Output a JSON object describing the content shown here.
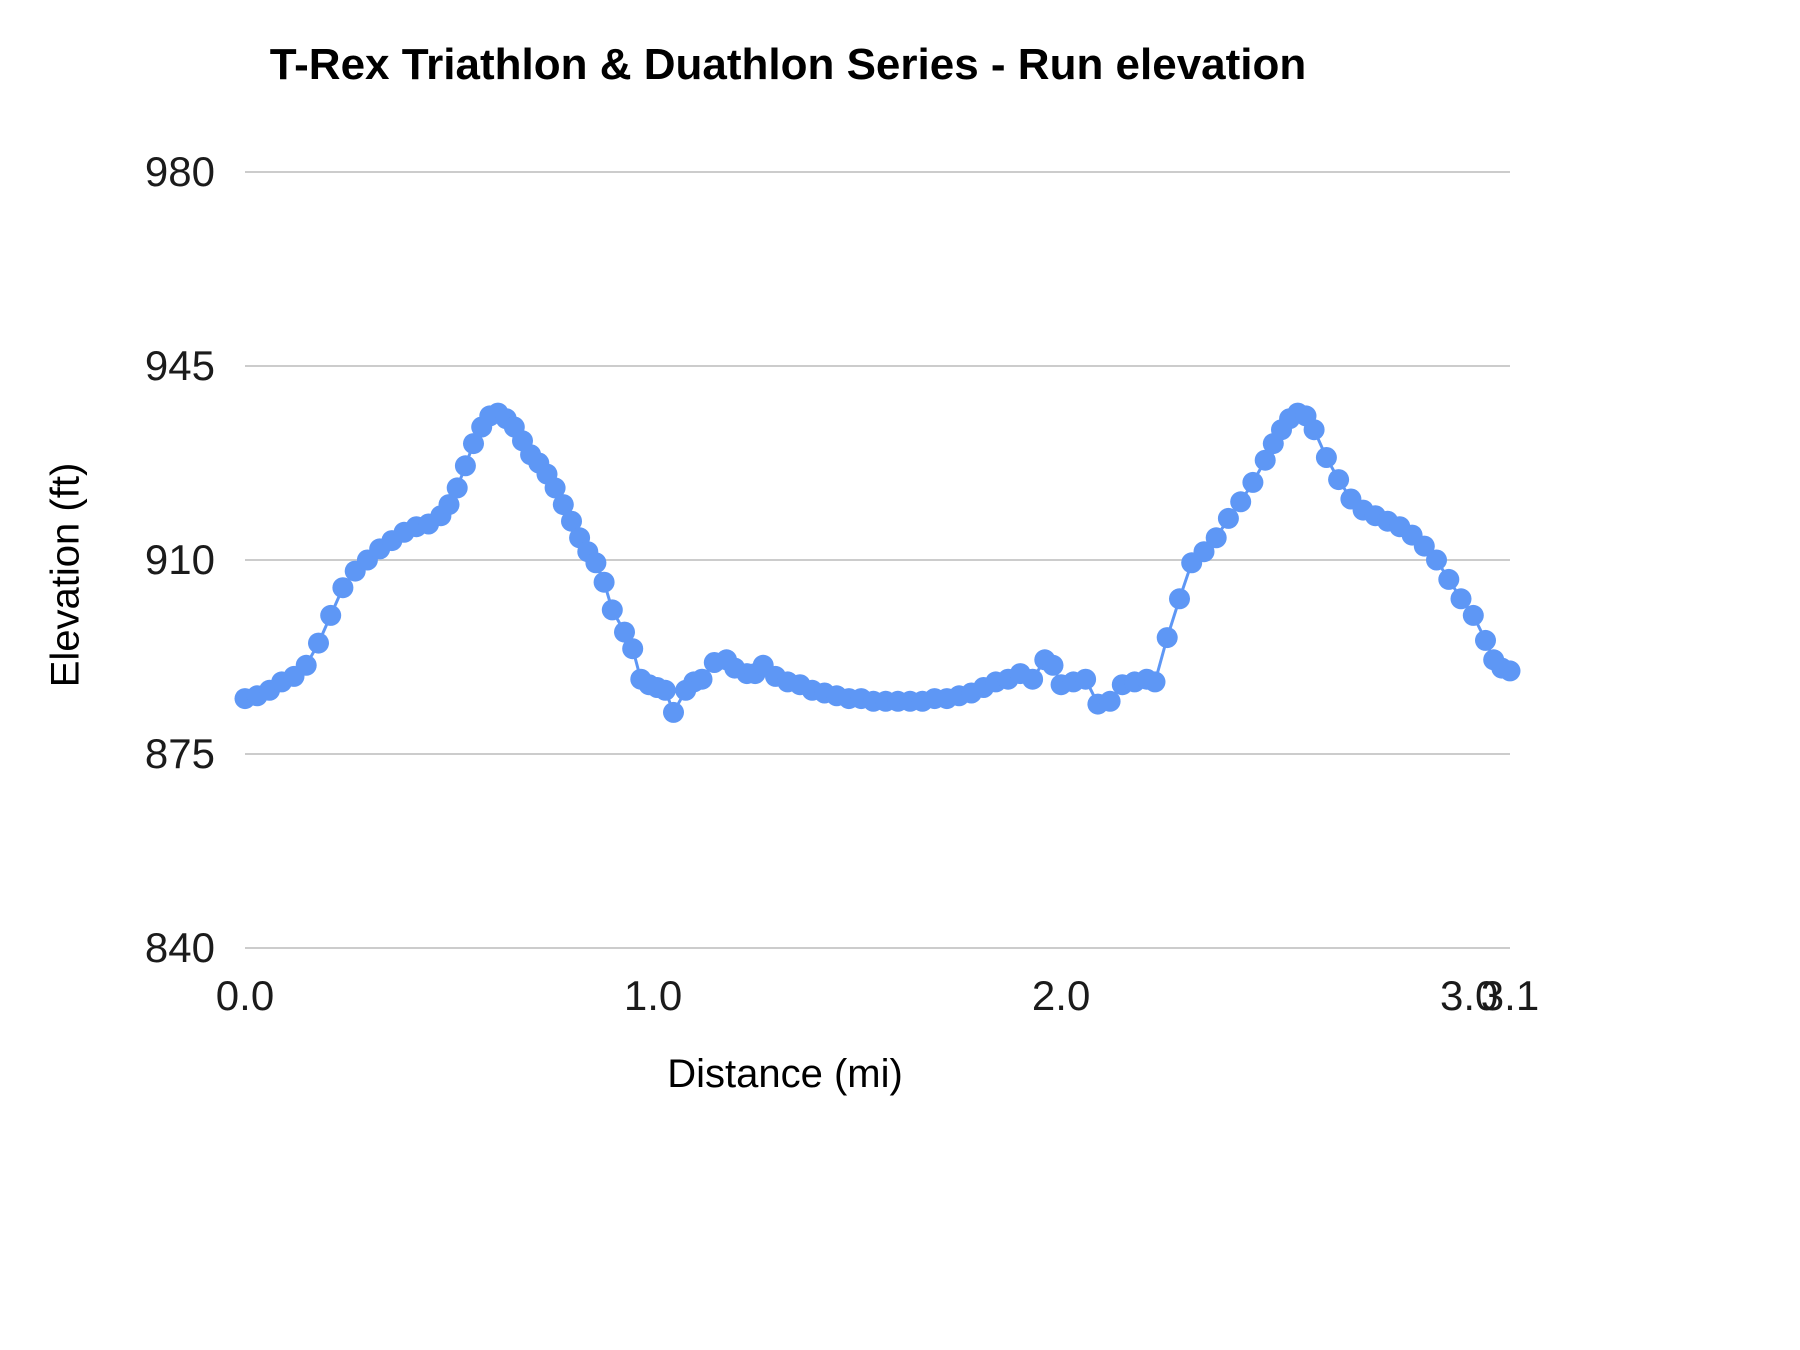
{
  "chart_data": {
    "type": "line",
    "title": "T-Rex Triathlon & Duathlon Series - Run elevation",
    "xlabel": "Distance (mi)",
    "ylabel": "Elevation (ft)",
    "xlim": [
      0,
      3.1
    ],
    "ylim": [
      840,
      980
    ],
    "grid": "horizontal",
    "legend": "none",
    "series_color": "#5e97f5",
    "gridline_color": "#cccccc",
    "tick_color": "#1b1b1b",
    "yticks": [
      840,
      875,
      910,
      945,
      980
    ],
    "xticks": [
      {
        "label": "0.0",
        "value": 0.0
      },
      {
        "label": "1.0",
        "value": 1.0
      },
      {
        "label": "2.0",
        "value": 2.0
      },
      {
        "label": "3.0",
        "value": 3.0
      },
      {
        "label": "3.1",
        "value": 3.1
      }
    ],
    "series": [
      {
        "name": "Run elevation",
        "x": [
          0.0,
          0.03,
          0.06,
          0.09,
          0.12,
          0.15,
          0.18,
          0.21,
          0.24,
          0.27,
          0.3,
          0.33,
          0.36,
          0.39,
          0.42,
          0.45,
          0.48,
          0.5,
          0.52,
          0.54,
          0.56,
          0.58,
          0.6,
          0.62,
          0.64,
          0.66,
          0.68,
          0.7,
          0.72,
          0.74,
          0.76,
          0.78,
          0.8,
          0.82,
          0.84,
          0.86,
          0.88,
          0.9,
          0.93,
          0.95,
          0.97,
          0.99,
          1.01,
          1.03,
          1.05,
          1.08,
          1.1,
          1.12,
          1.15,
          1.18,
          1.2,
          1.23,
          1.25,
          1.27,
          1.3,
          1.33,
          1.36,
          1.39,
          1.42,
          1.45,
          1.48,
          1.51,
          1.54,
          1.57,
          1.6,
          1.63,
          1.66,
          1.69,
          1.72,
          1.75,
          1.78,
          1.81,
          1.84,
          1.87,
          1.9,
          1.93,
          1.96,
          1.98,
          2.0,
          2.03,
          2.06,
          2.09,
          2.12,
          2.15,
          2.18,
          2.21,
          2.23,
          2.26,
          2.29,
          2.32,
          2.35,
          2.38,
          2.41,
          2.44,
          2.47,
          2.5,
          2.52,
          2.54,
          2.56,
          2.58,
          2.6,
          2.62,
          2.65,
          2.68,
          2.71,
          2.74,
          2.77,
          2.8,
          2.83,
          2.86,
          2.89,
          2.92,
          2.95,
          2.98,
          3.01,
          3.04,
          3.06,
          3.08,
          3.1
        ],
        "y": [
          885,
          885.5,
          886.5,
          888,
          889,
          891,
          895,
          900,
          905,
          908,
          910,
          912,
          913.5,
          915,
          916,
          916.5,
          918,
          920,
          923,
          927,
          931,
          934,
          936,
          936.5,
          935.5,
          934,
          931.5,
          929,
          927.5,
          925.5,
          923,
          920,
          917,
          914,
          911.5,
          909.5,
          906,
          901,
          897,
          894,
          888.5,
          887.5,
          887,
          886.5,
          882.5,
          886.5,
          888,
          888.5,
          891.5,
          892,
          890.5,
          889.5,
          889.5,
          891,
          889,
          888,
          887.5,
          886.5,
          886,
          885.5,
          885,
          885,
          884.5,
          884.5,
          884.5,
          884.5,
          884.5,
          885,
          885,
          885.5,
          886,
          887,
          888,
          888.5,
          889.5,
          888.5,
          892,
          891,
          887.5,
          888,
          888.5,
          884,
          884.5,
          887.5,
          888,
          888.5,
          888,
          896,
          903,
          909.5,
          911.5,
          914,
          917.5,
          920.5,
          924,
          928,
          931,
          933.5,
          935.5,
          936.5,
          936,
          933.5,
          928.5,
          924.5,
          921,
          919,
          918,
          917,
          916,
          914.5,
          912.5,
          910,
          906.5,
          903,
          900,
          895.5,
          892,
          890.5,
          890
        ]
      }
    ]
  }
}
